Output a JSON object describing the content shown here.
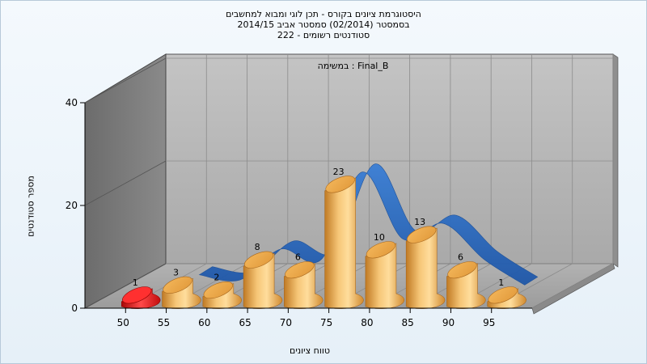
{
  "chart_data": {
    "type": "bar",
    "title_lines": [
      "היסטוגרמת ציונים בקורס - תכן לוגי ומבוא למחשבים",
      "בסמסטר  (02/2014)  סמסטר אביב 2014/15",
      "סטודנטים רשומים - 222"
    ],
    "inner_label": "במשימה : Final_B",
    "xlabel": "טווח ציונים",
    "ylabel": "מספר סטודנטים",
    "categories": [
      "50",
      "55",
      "60",
      "65",
      "70",
      "75",
      "80",
      "85",
      "90",
      "95"
    ],
    "values": [
      1,
      3,
      2,
      8,
      6,
      23,
      10,
      13,
      6,
      1
    ],
    "bar_labels": [
      "1",
      "3",
      "2",
      "8",
      "6",
      "23",
      "10",
      "13",
      "6",
      "1"
    ],
    "yticks": [
      "0",
      "20",
      "40"
    ],
    "ylim": [
      0,
      40
    ],
    "highlight_index": 0,
    "grid": true,
    "colors": {
      "bar": "#e3a64a",
      "highlight": "#dd1515",
      "ribbon": "#2f6ec4",
      "back_wall": "#b6b6b6",
      "side_wall": "#7a7a7a",
      "floor": "#a8a8a8"
    }
  }
}
